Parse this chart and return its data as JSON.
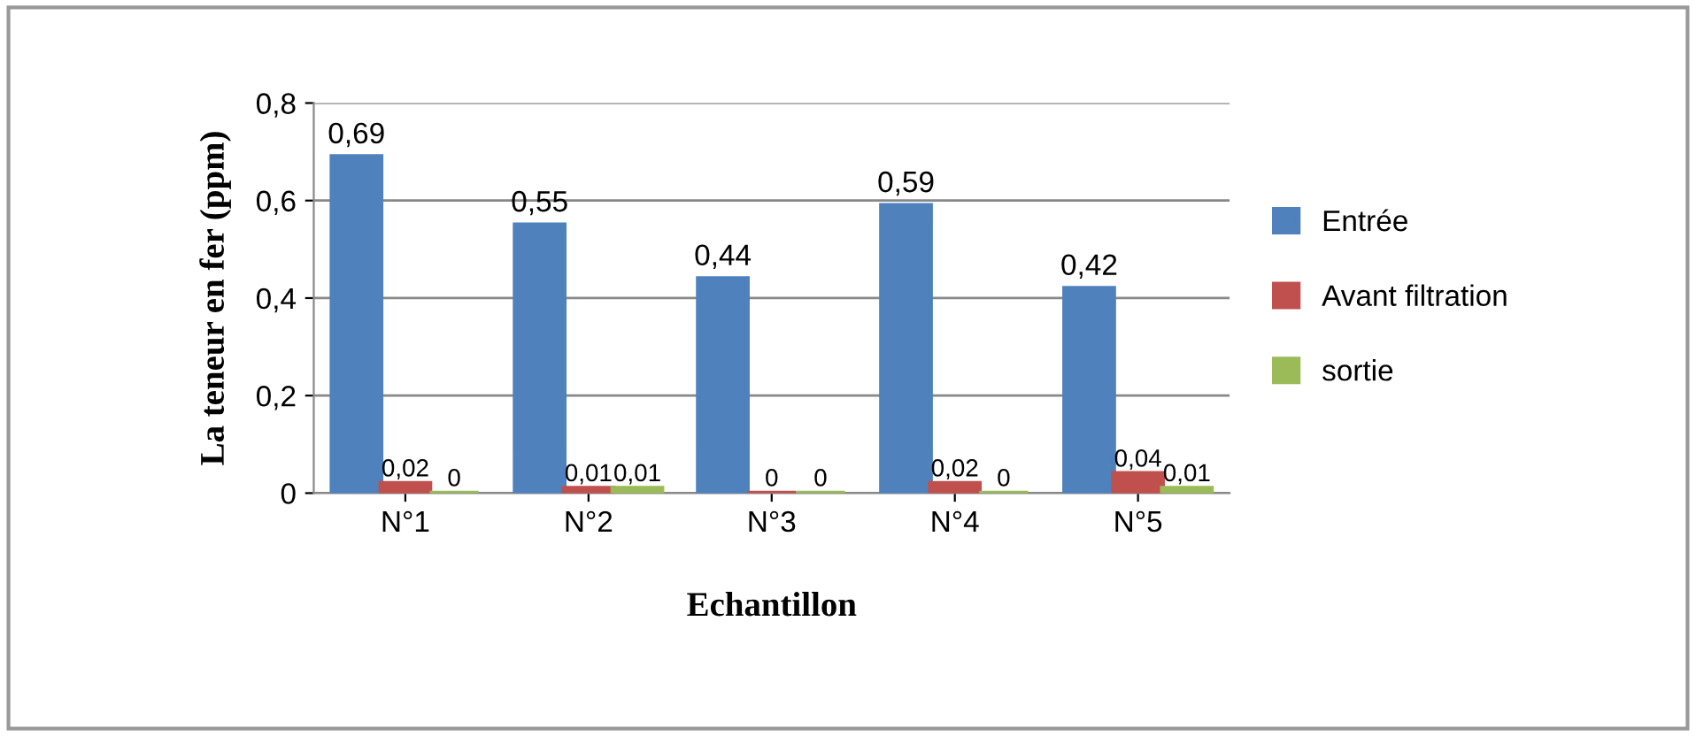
{
  "chart_data": {
    "type": "bar",
    "xlabel": "Echantillon",
    "ylabel": "La teneur en fer (ppm)",
    "categories": [
      "N°1",
      "N°2",
      "N°3",
      "N°4",
      "N°5"
    ],
    "series": [
      {
        "name": "Entrée",
        "color": "#4f81bd",
        "values": [
          0.69,
          0.55,
          0.44,
          0.59,
          0.42
        ],
        "value_labels": [
          "0,69",
          "0,55",
          "0,44",
          "0,59",
          "0,42"
        ]
      },
      {
        "name": "Avant filtration",
        "color": "#c0504d",
        "values": [
          0.02,
          0.01,
          0,
          0.02,
          0.04
        ],
        "value_labels": [
          "0,02",
          "0,01",
          "0",
          "0,02",
          "0,04"
        ]
      },
      {
        "name": "sortie",
        "color": "#9bbb59",
        "values": [
          0,
          0.01,
          0,
          0,
          0.01
        ],
        "value_labels": [
          "0",
          "0,01",
          "0",
          "0",
          "0,01"
        ]
      }
    ],
    "ylim": [
      0,
      0.8
    ],
    "yticks": [
      {
        "value": 0,
        "label": "0"
      },
      {
        "value": 0.2,
        "label": "0,2"
      },
      {
        "value": 0.4,
        "label": "0,4"
      },
      {
        "value": 0.6,
        "label": "0,6"
      },
      {
        "value": 0.8,
        "label": "0,8"
      }
    ],
    "grid": "y",
    "legend": "right"
  }
}
